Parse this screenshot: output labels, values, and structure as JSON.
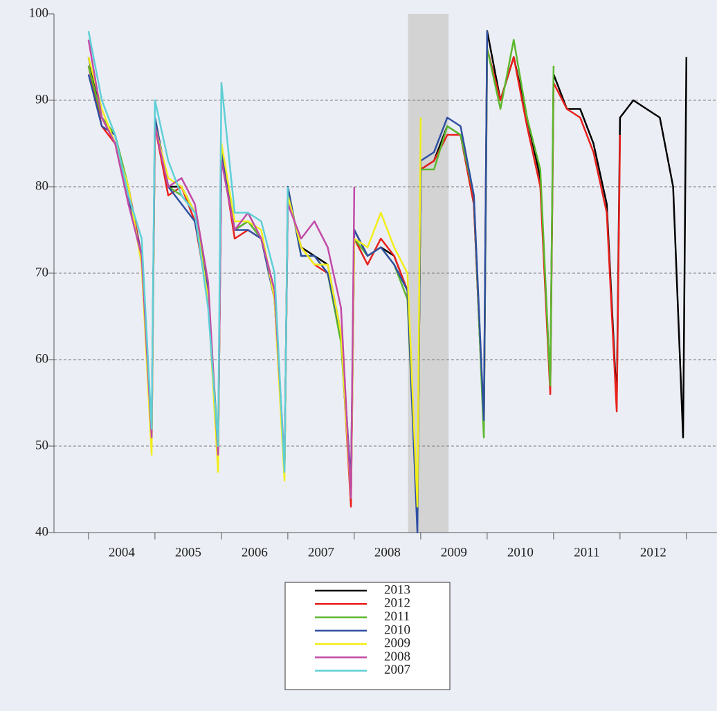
{
  "chart_data": {
    "type": "line",
    "x": [
      2004,
      2004.2,
      2004.4,
      2004.6,
      2004.8,
      2004.95,
      2005,
      2005.2,
      2005.4,
      2005.6,
      2005.8,
      2005.95,
      2006,
      2006.2,
      2006.4,
      2006.6,
      2006.8,
      2006.95,
      2007,
      2007.2,
      2007.4,
      2007.6,
      2007.8,
      2007.95,
      2008,
      2008.2,
      2008.4,
      2008.6,
      2008.8,
      2008.95,
      2009,
      2009.2,
      2009.4,
      2009.6,
      2009.8,
      2009.95,
      2010,
      2010.2,
      2010.4,
      2010.6,
      2010.8,
      2010.95,
      2011,
      2011.2,
      2011.4,
      2011.6,
      2011.8,
      2011.95,
      2012,
      2012.2,
      2012.4,
      2012.6,
      2012.8,
      2012.95,
      2013
    ],
    "xlim": [
      2003.48,
      2013.46
    ],
    "xticks": [
      {
        "value": 2004.5,
        "label": "2004"
      },
      {
        "value": 2005.5,
        "label": "2005"
      },
      {
        "value": 2006.5,
        "label": "2006"
      },
      {
        "value": 2007.5,
        "label": "2007"
      },
      {
        "value": 2008.5,
        "label": "2008"
      },
      {
        "value": 2009.5,
        "label": "2009"
      },
      {
        "value": 2010.5,
        "label": "2010"
      },
      {
        "value": 2011.5,
        "label": "2011"
      },
      {
        "value": 2012.5,
        "label": "2012"
      }
    ],
    "xtick_marks": [
      2004,
      2005,
      2006,
      2007,
      2008,
      2009,
      2010,
      2011,
      2012,
      2013
    ],
    "shaded": [
      2008.81,
      2009.42
    ],
    "ylim": [
      40,
      100
    ],
    "yticks": [
      40,
      50,
      60,
      70,
      80,
      90,
      100
    ],
    "grid": true,
    "legend": "bottom",
    "series": [
      {
        "name": "2013",
        "color": "#000000",
        "values": [
          95,
          88,
          86,
          79,
          72,
          51,
          88,
          80,
          80,
          77,
          67,
          48,
          84,
          75,
          76,
          74,
          68,
          47,
          79,
          73,
          72,
          71,
          63,
          44,
          75,
          72,
          73,
          72,
          68,
          42,
          82,
          83,
          87,
          86,
          78,
          52,
          98,
          90,
          95,
          88,
          81,
          57,
          93,
          89,
          89,
          85,
          78,
          55,
          88,
          90,
          89,
          88,
          80,
          51,
          95
        ]
      },
      {
        "name": "2012",
        "color": "#e8211c",
        "values": [
          94,
          87,
          85,
          80,
          72,
          51,
          87,
          79,
          80,
          76,
          67,
          48,
          84,
          74,
          75,
          74,
          68,
          47,
          79,
          73,
          71,
          70,
          63,
          43,
          74,
          71,
          74,
          72,
          68,
          42,
          82,
          83,
          86,
          86,
          78,
          52,
          96,
          90,
          95,
          87,
          80,
          56,
          92,
          89,
          88,
          84,
          77,
          54,
          86,
          null,
          null,
          null,
          null,
          null,
          null
        ]
      },
      {
        "name": "2011",
        "color": "#5cb82e",
        "values": [
          94,
          88,
          86,
          80,
          71,
          50,
          88,
          80,
          79,
          77,
          68,
          50,
          84,
          75,
          76,
          74,
          67,
          47,
          80,
          72,
          72,
          70,
          62,
          45,
          74,
          72,
          73,
          71,
          67,
          41,
          82,
          82,
          87,
          86,
          79,
          51,
          96,
          89,
          97,
          88,
          82,
          57,
          94,
          null,
          null,
          null,
          null,
          null,
          null,
          null,
          null,
          null,
          null,
          null,
          null
        ]
      },
      {
        "name": "2010",
        "color": "#2f4fa2",
        "values": [
          93,
          87,
          86,
          79,
          72,
          50,
          88,
          80,
          78,
          76,
          68,
          49,
          84,
          75,
          75,
          74,
          67,
          47,
          80,
          72,
          72,
          70,
          63,
          46,
          75,
          72,
          73,
          71,
          68,
          40,
          83,
          84,
          88,
          87,
          79,
          53,
          98,
          null,
          null,
          null,
          null,
          null,
          null,
          null,
          null,
          null,
          null,
          null,
          null,
          null,
          null,
          null,
          null,
          null,
          null
        ]
      },
      {
        "name": "2009",
        "color": "#f2ee1a",
        "values": [
          95,
          89,
          85,
          80,
          71,
          49,
          87,
          81,
          80,
          77,
          67,
          47,
          85,
          76,
          76,
          75,
          67,
          46,
          79,
          73,
          71,
          71,
          63,
          44,
          74,
          73,
          77,
          73,
          70,
          43,
          88,
          null,
          null,
          null,
          null,
          null,
          null,
          null,
          null,
          null,
          null,
          null,
          null,
          null,
          null,
          null,
          null,
          null,
          null,
          null,
          null,
          null,
          null,
          null,
          null
        ]
      },
      {
        "name": "2008",
        "color": "#c14aa6",
        "values": [
          97,
          88,
          85,
          78,
          72,
          51,
          87,
          80,
          81,
          78,
          69,
          49,
          83,
          75,
          77,
          74,
          68,
          48,
          78,
          74,
          76,
          73,
          66,
          44,
          80,
          null,
          null,
          null,
          null,
          null,
          null,
          null,
          null,
          null,
          null,
          null,
          null,
          null,
          null,
          null,
          null,
          null,
          null,
          null,
          null,
          null,
          null,
          null,
          null,
          null,
          null,
          null,
          null,
          null,
          null
        ]
      },
      {
        "name": "2007",
        "color": "#5fcfd6",
        "values": [
          98,
          90,
          86,
          79,
          74,
          52,
          90,
          83,
          79,
          77,
          66,
          50,
          92,
          77,
          77,
          76,
          70,
          47,
          80,
          null,
          null,
          null,
          null,
          null,
          null,
          null,
          null,
          null,
          null,
          null,
          null,
          null,
          null,
          null,
          null,
          null,
          null,
          null,
          null,
          null,
          null,
          null,
          null,
          null,
          null,
          null,
          null,
          null,
          null,
          null,
          null,
          null,
          null,
          null,
          null
        ]
      }
    ]
  }
}
